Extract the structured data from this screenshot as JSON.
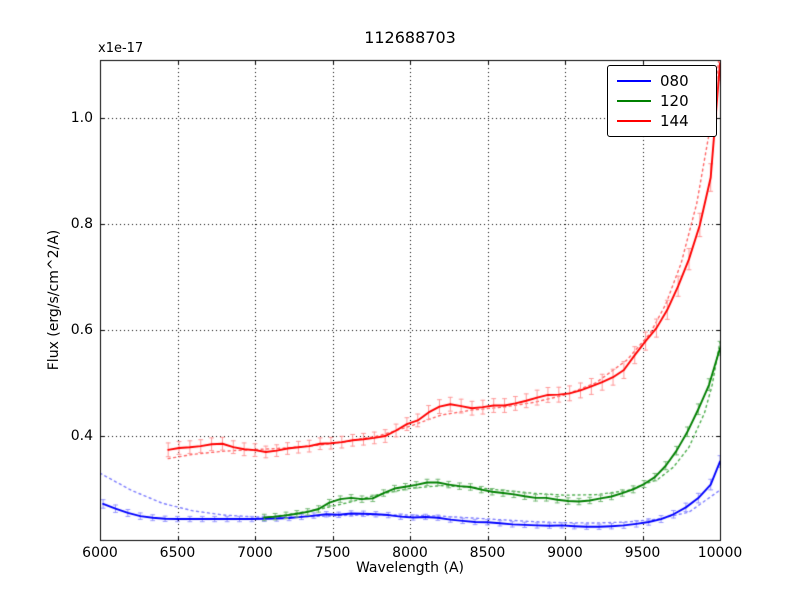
{
  "chart_data": {
    "type": "line",
    "title": "112688703",
    "xlabel": "Wavelength (A)",
    "ylabel": "Flux (erg/s/cm^2/A)",
    "y_offset_text": "x1e-17",
    "xlim": [
      6000,
      10000
    ],
    "ylim": [
      0.204,
      1.109
    ],
    "xticks": [
      6000,
      6500,
      7000,
      7500,
      8000,
      8500,
      9000,
      9500,
      10000
    ],
    "xtick_labels": [
      "6000",
      "6500",
      "7000",
      "7500",
      "8000",
      "8500",
      "9000",
      "9500",
      "10000"
    ],
    "yticks": [
      0.4,
      0.6,
      0.8,
      1.0
    ],
    "ytick_labels": [
      "0.4",
      "0.6",
      "0.8",
      "1.0"
    ],
    "grid": {
      "visible": true,
      "style": "dotted",
      "color": "#000000"
    },
    "frame_color": "#000000",
    "background": "#ffffff",
    "legend": {
      "position": "upper right",
      "entries": [
        {
          "label": "080",
          "color": "#0000ff"
        },
        {
          "label": "120",
          "color": "#008000"
        },
        {
          "label": "144",
          "color": "#ff0000"
        }
      ]
    },
    "series": [
      {
        "name": "080-model",
        "line_style": "dotted",
        "color": "#8080ff",
        "x": [
          6000,
          6200,
          6400,
          6600,
          6800,
          7000,
          7200,
          7400,
          7600,
          7800,
          8000,
          8200,
          8400,
          8600,
          8800,
          9000,
          9200,
          9400,
          9600,
          9800,
          10000
        ],
        "y": [
          0.33,
          0.298,
          0.2735,
          0.259,
          0.251,
          0.2475,
          0.247,
          0.2485,
          0.2505,
          0.2515,
          0.251,
          0.249,
          0.2455,
          0.242,
          0.2385,
          0.2365,
          0.236,
          0.238,
          0.2435,
          0.2565,
          0.298
        ]
      },
      {
        "name": "120-model",
        "line_style": "dotted",
        "color": "#4faf4f",
        "x": [
          7050,
          7200,
          7400,
          7600,
          7800,
          8000,
          8200,
          8400,
          8600,
          8800,
          9000,
          9200,
          9400,
          9600,
          9700,
          9800,
          9900,
          9950,
          10000
        ],
        "y": [
          0.2455,
          0.2515,
          0.261,
          0.2745,
          0.29,
          0.3015,
          0.3065,
          0.3035,
          0.2975,
          0.292,
          0.2885,
          0.2895,
          0.297,
          0.3185,
          0.3415,
          0.379,
          0.4435,
          0.497,
          0.578
        ]
      },
      {
        "name": "144-model",
        "line_style": "dotted",
        "color": "#ff6666",
        "x": [
          6440,
          6600,
          6800,
          7000,
          7200,
          7400,
          7600,
          7800,
          8000,
          8200,
          8400,
          8600,
          8800,
          9000,
          9200,
          9400,
          9550,
          9650,
          9750,
          9850,
          9925,
          9975,
          10000
        ],
        "y": [
          0.3575,
          0.3655,
          0.3715,
          0.3745,
          0.3775,
          0.3825,
          0.39,
          0.4005,
          0.4185,
          0.4395,
          0.449,
          0.4545,
          0.4635,
          0.4775,
          0.5005,
          0.5435,
          0.594,
          0.6485,
          0.7265,
          0.8385,
          0.9625,
          1.0675,
          1.13
        ]
      },
      {
        "name": "080-observed",
        "legend_label": "080",
        "line_style": "solid",
        "color": "#0000ff",
        "err_color": "#9a9aff",
        "x": [
          6020,
          6100,
          6180,
          6260,
          6340,
          6420,
          6500,
          6580,
          6660,
          6740,
          6820,
          6900,
          6980,
          7060,
          7140,
          7220,
          7300,
          7380,
          7460,
          7540,
          7620,
          7700,
          7780,
          7860,
          7940,
          8020,
          8100,
          8180,
          8260,
          8340,
          8420,
          8500,
          8580,
          8660,
          8740,
          8820,
          8900,
          8980,
          9060,
          9140,
          9220,
          9300,
          9380,
          9460,
          9540,
          9620,
          9700,
          9780,
          9860,
          9940,
          10000
        ],
        "y": [
          0.272,
          0.263,
          0.255,
          0.249,
          0.246,
          0.244,
          0.2435,
          0.2435,
          0.2435,
          0.2435,
          0.2435,
          0.2435,
          0.2435,
          0.244,
          0.2445,
          0.2455,
          0.2475,
          0.25,
          0.2525,
          0.2515,
          0.254,
          0.2535,
          0.2525,
          0.251,
          0.248,
          0.2465,
          0.2475,
          0.246,
          0.2425,
          0.24,
          0.238,
          0.2375,
          0.2355,
          0.2335,
          0.2325,
          0.2315,
          0.231,
          0.2315,
          0.23,
          0.229,
          0.229,
          0.23,
          0.2315,
          0.2345,
          0.238,
          0.2435,
          0.2525,
          0.2655,
          0.283,
          0.3085,
          0.352
        ],
        "yerr": [
          0.008,
          0.007,
          0.0065,
          0.006,
          0.0055,
          0.005,
          0.005,
          0.005,
          0.005,
          0.005,
          0.005,
          0.005,
          0.005,
          0.005,
          0.005,
          0.005,
          0.005,
          0.005,
          0.005,
          0.005,
          0.005,
          0.005,
          0.005,
          0.005,
          0.005,
          0.005,
          0.005,
          0.005,
          0.005,
          0.005,
          0.005,
          0.005,
          0.005,
          0.005,
          0.005,
          0.005,
          0.005,
          0.005,
          0.005,
          0.005,
          0.005,
          0.005,
          0.0055,
          0.006,
          0.006,
          0.0065,
          0.007,
          0.008,
          0.009,
          0.01,
          0.011
        ]
      },
      {
        "name": "120-observed",
        "legend_label": "120",
        "line_style": "solid",
        "color": "#008000",
        "err_color": "#77bb77",
        "x": [
          7060,
          7130,
          7200,
          7270,
          7340,
          7410,
          7480,
          7550,
          7620,
          7690,
          7760,
          7830,
          7900,
          7970,
          8040,
          8110,
          8180,
          8250,
          8320,
          8390,
          8460,
          8530,
          8600,
          8670,
          8740,
          8810,
          8880,
          8950,
          9020,
          9090,
          9160,
          9230,
          9300,
          9370,
          9440,
          9510,
          9580,
          9650,
          9720,
          9790,
          9860,
          9930,
          10000
        ],
        "y": [
          0.2465,
          0.248,
          0.2505,
          0.2535,
          0.257,
          0.2625,
          0.2745,
          0.281,
          0.2835,
          0.281,
          0.2825,
          0.2925,
          0.301,
          0.3045,
          0.308,
          0.3125,
          0.3125,
          0.3085,
          0.3055,
          0.304,
          0.299,
          0.295,
          0.2925,
          0.29,
          0.2865,
          0.2835,
          0.2835,
          0.28,
          0.2775,
          0.2765,
          0.2785,
          0.2825,
          0.286,
          0.2925,
          0.2995,
          0.3095,
          0.3225,
          0.344,
          0.3725,
          0.408,
          0.4505,
          0.497,
          0.5655
        ],
        "yerr": [
          0.006,
          0.006,
          0.006,
          0.006,
          0.006,
          0.006,
          0.006,
          0.006,
          0.006,
          0.006,
          0.006,
          0.006,
          0.006,
          0.006,
          0.006,
          0.006,
          0.006,
          0.006,
          0.006,
          0.006,
          0.006,
          0.006,
          0.006,
          0.006,
          0.006,
          0.006,
          0.006,
          0.006,
          0.006,
          0.006,
          0.006,
          0.006,
          0.006,
          0.006,
          0.0065,
          0.0065,
          0.007,
          0.0075,
          0.008,
          0.009,
          0.01,
          0.011,
          0.013
        ]
      },
      {
        "name": "144-observed",
        "legend_label": "144",
        "line_style": "solid",
        "color": "#ff0000",
        "err_color": "#ff9a9a",
        "x": [
          6440,
          6510,
          6580,
          6650,
          6720,
          6790,
          6860,
          6930,
          7000,
          7070,
          7140,
          7210,
          7280,
          7350,
          7420,
          7490,
          7560,
          7630,
          7700,
          7770,
          7840,
          7910,
          7980,
          8050,
          8120,
          8190,
          8260,
          8330,
          8400,
          8470,
          8540,
          8610,
          8680,
          8750,
          8820,
          8890,
          8960,
          9030,
          9100,
          9170,
          9240,
          9310,
          9380,
          9450,
          9520,
          9590,
          9660,
          9730,
          9800,
          9870,
          9940,
          10000
        ],
        "y": [
          0.374,
          0.3775,
          0.379,
          0.381,
          0.3845,
          0.3855,
          0.379,
          0.375,
          0.3735,
          0.37,
          0.3725,
          0.3765,
          0.379,
          0.381,
          0.3855,
          0.3865,
          0.3885,
          0.392,
          0.394,
          0.3965,
          0.4,
          0.4105,
          0.4225,
          0.4295,
          0.4445,
          0.4555,
          0.46,
          0.4565,
          0.4525,
          0.4545,
          0.4575,
          0.4575,
          0.4615,
          0.4665,
          0.4725,
          0.4775,
          0.478,
          0.4805,
          0.486,
          0.4935,
          0.5015,
          0.511,
          0.5245,
          0.5525,
          0.579,
          0.6035,
          0.638,
          0.6825,
          0.7335,
          0.798,
          0.8875,
          1.103
        ],
        "yerr": [
          0.013,
          0.012,
          0.012,
          0.012,
          0.012,
          0.012,
          0.012,
          0.012,
          0.012,
          0.011,
          0.011,
          0.011,
          0.011,
          0.011,
          0.011,
          0.011,
          0.011,
          0.011,
          0.011,
          0.011,
          0.012,
          0.012,
          0.012,
          0.012,
          0.013,
          0.013,
          0.013,
          0.013,
          0.013,
          0.013,
          0.013,
          0.013,
          0.013,
          0.013,
          0.014,
          0.014,
          0.014,
          0.014,
          0.014,
          0.015,
          0.015,
          0.015,
          0.016,
          0.016,
          0.017,
          0.017,
          0.018,
          0.019,
          0.02,
          0.022,
          0.026,
          0.032
        ]
      }
    ]
  }
}
